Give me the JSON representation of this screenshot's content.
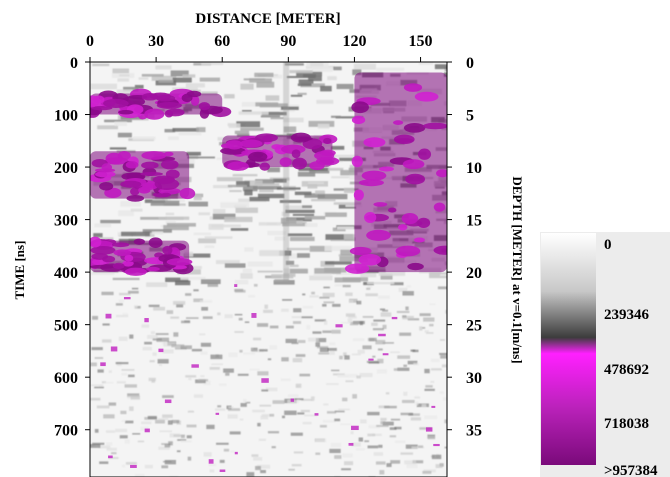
{
  "chart_data": {
    "type": "heatmap",
    "title": "",
    "top_axis_label": "DISTANCE [METER]",
    "left_axis_label": "TIME [ns]",
    "right_axis_label": "DEPTH [METER] at v=0.1[m/ns]",
    "x_ticks": [
      0,
      30,
      60,
      90,
      120,
      150
    ],
    "x_range": [
      0,
      162
    ],
    "y_ticks": [
      0,
      100,
      200,
      300,
      400,
      500,
      600,
      700
    ],
    "y_range": [
      0,
      790
    ],
    "depth_ticks": [
      0,
      5,
      10,
      15,
      20,
      25,
      30,
      35
    ],
    "colorbar": {
      "labels": [
        "0",
        "239346",
        "478692",
        "718038",
        ">957384"
      ],
      "values": [
        0,
        239346,
        478692,
        718038,
        957384
      ],
      "colors": [
        "#ffffff",
        "#b4b4b4",
        "#4a4a4a",
        "#ff18ff",
        "#7a0a7a"
      ]
    },
    "high_amplitude_zones": [
      {
        "time": [
          60,
          100
        ],
        "distance": [
          0,
          60
        ]
      },
      {
        "time": [
          170,
          260
        ],
        "distance": [
          0,
          45
        ]
      },
      {
        "time": [
          340,
          400
        ],
        "distance": [
          0,
          45
        ]
      },
      {
        "time": [
          20,
          400
        ],
        "distance": [
          120,
          162
        ]
      },
      {
        "time": [
          140,
          200
        ],
        "distance": [
          60,
          110
        ]
      }
    ],
    "grid": false
  }
}
